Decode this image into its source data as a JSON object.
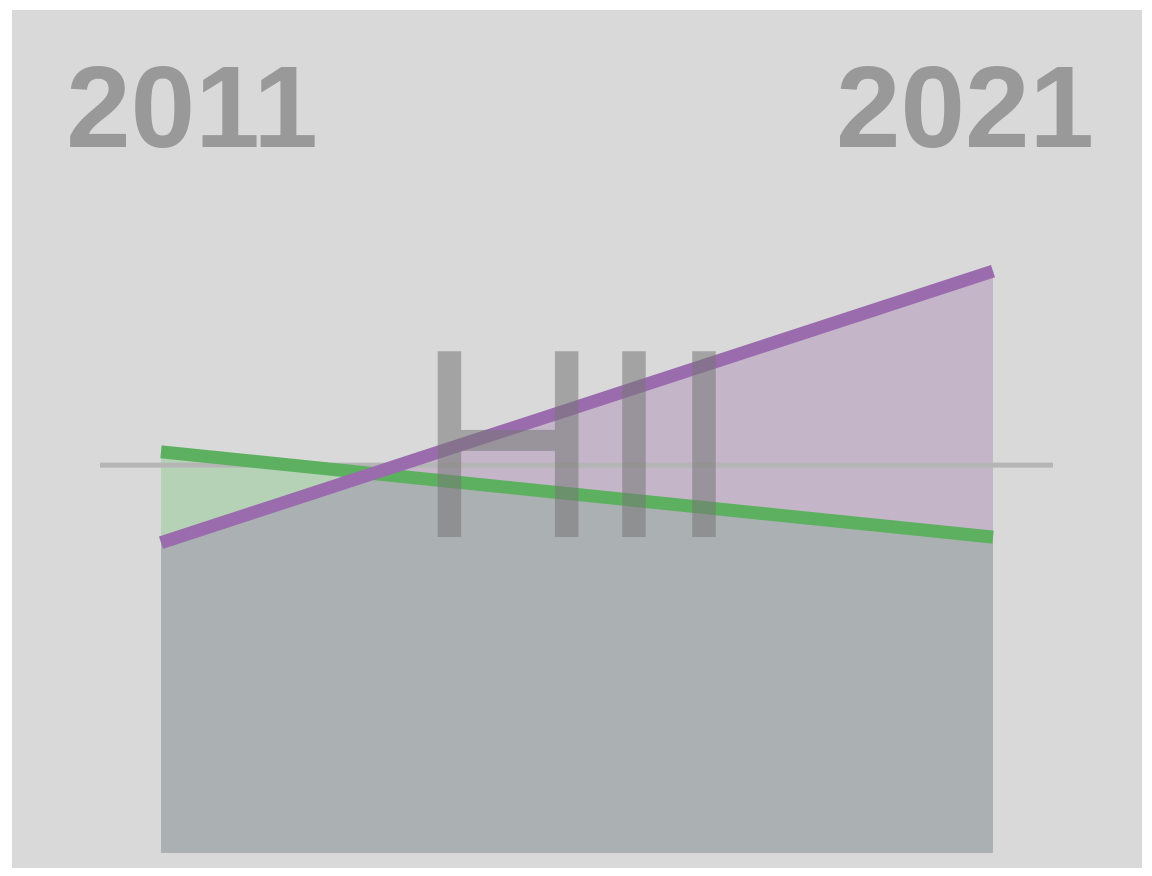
{
  "chart_data": {
    "type": "line",
    "title": "",
    "xlabel": "",
    "ylabel": "",
    "x": [
      2011,
      2021
    ],
    "x_labels": [
      "2011",
      "2021"
    ],
    "series": [
      {
        "color": "#5cb05f",
        "fill": "#b5d1b6",
        "values": [
          1.12,
          0.35
        ]
      },
      {
        "color": "#9a6cae",
        "fill": "#c4b5c9",
        "values": [
          0.3,
          2.75
        ]
      }
    ],
    "reference_line": {
      "value": 1.0,
      "color": "#b5b5b5"
    },
    "xlim": [
      2011,
      2021
    ],
    "ylim": [
      -2.5,
      3.5
    ],
    "grid": false,
    "legend": "none",
    "watermark": "HII",
    "background": "#d9d9d9",
    "overlap_fill": "#abb0b3",
    "label_color": "#999999",
    "watermark_color": "#777777"
  }
}
